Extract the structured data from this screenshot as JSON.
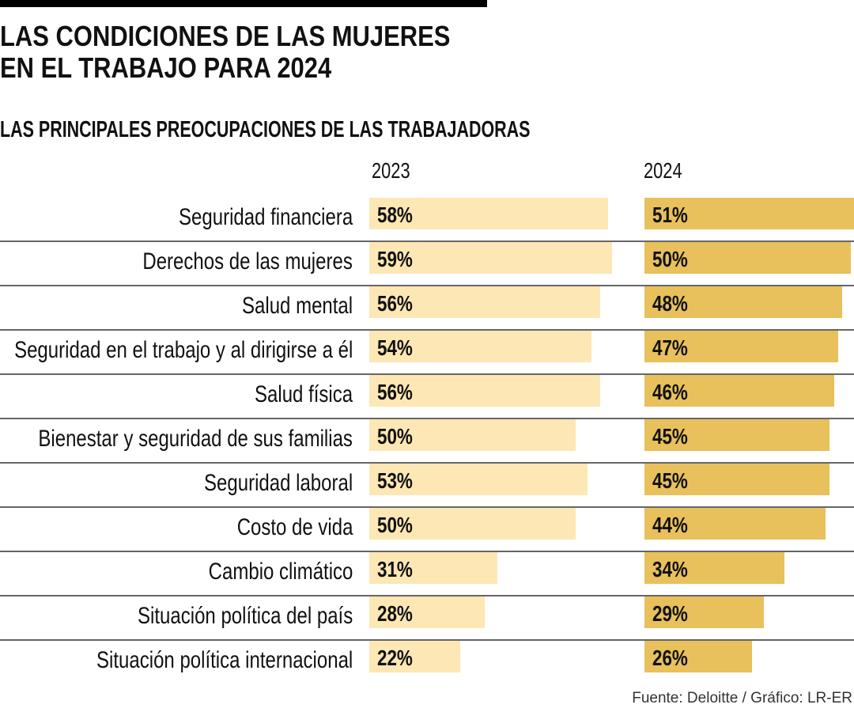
{
  "title_line1": "LAS CONDICIONES DE LAS MUJERES",
  "title_line2": "EN EL TRABAJO PARA 2024",
  "source": "Fuente: Deloitte / Gráfico: LR-ER",
  "colors": {
    "2023": "#fde7b4",
    "2024": "#e8c05c"
  },
  "chart_data": {
    "type": "bar",
    "orientation": "horizontal",
    "title": "LAS PRINCIPALES PREOCUPACIONES DE LAS TRABAJADORAS",
    "categories": [
      "Seguridad financiera",
      "Derechos de las mujeres",
      "Salud mental",
      "Seguridad en el trabajo y al dirigirse a él",
      "Salud física",
      "Bienestar y seguridad de sus familias",
      "Seguridad laboral",
      "Costo de vida",
      "Cambio climático",
      "Situación política del país",
      "Situación política internacional"
    ],
    "series": [
      {
        "name": "2023",
        "values": [
          58,
          59,
          56,
          54,
          56,
          50,
          53,
          50,
          31,
          28,
          22
        ]
      },
      {
        "name": "2024",
        "values": [
          51,
          50,
          48,
          47,
          46,
          45,
          45,
          44,
          34,
          29,
          26
        ]
      }
    ],
    "unit": "%",
    "xlim": [
      0,
      60
    ]
  }
}
